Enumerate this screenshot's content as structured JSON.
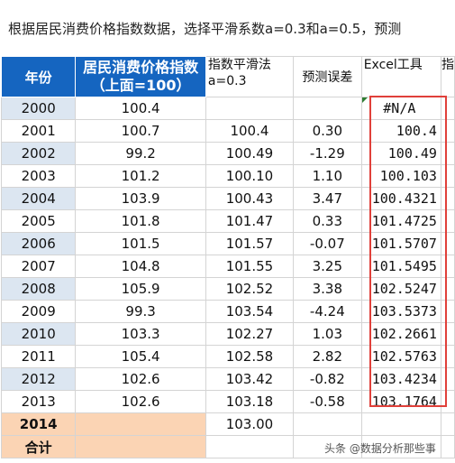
{
  "title": "根据居民消费价格指数数据，选择平滑系数a=0.3和a=0.5，预测",
  "headers": {
    "year": "年份",
    "cpi": "居民消费价格指数（上面=100）",
    "smooth": "指数平滑法a=0.3",
    "error": "预测误差",
    "excel": "Excel工具",
    "cut": "指"
  },
  "rows": [
    {
      "year": "2000",
      "cpi": "100.4",
      "smooth": "",
      "error": "",
      "excel": "#N/A"
    },
    {
      "year": "2001",
      "cpi": "100.7",
      "smooth": "100.4",
      "error": "0.30",
      "excel": "100.4"
    },
    {
      "year": "2002",
      "cpi": "99.2",
      "smooth": "100.49",
      "error": "-1.29",
      "excel": "100.49"
    },
    {
      "year": "2003",
      "cpi": "101.2",
      "smooth": "100.10",
      "error": "1.10",
      "excel": "100.103"
    },
    {
      "year": "2004",
      "cpi": "103.9",
      "smooth": "100.43",
      "error": "3.47",
      "excel": "100.4321"
    },
    {
      "year": "2005",
      "cpi": "101.8",
      "smooth": "101.47",
      "error": "0.33",
      "excel": "101.4725"
    },
    {
      "year": "2006",
      "cpi": "101.5",
      "smooth": "101.57",
      "error": "-0.07",
      "excel": "101.5707"
    },
    {
      "year": "2007",
      "cpi": "104.8",
      "smooth": "101.55",
      "error": "3.25",
      "excel": "101.5495"
    },
    {
      "year": "2008",
      "cpi": "105.9",
      "smooth": "102.52",
      "error": "3.38",
      "excel": "102.5247"
    },
    {
      "year": "2009",
      "cpi": "99.3",
      "smooth": "103.54",
      "error": "-4.24",
      "excel": "103.5373"
    },
    {
      "year": "2010",
      "cpi": "103.3",
      "smooth": "102.27",
      "error": "1.03",
      "excel": "102.2661"
    },
    {
      "year": "2011",
      "cpi": "105.4",
      "smooth": "102.58",
      "error": "2.82",
      "excel": "102.5763"
    },
    {
      "year": "2012",
      "cpi": "102.6",
      "smooth": "103.42",
      "error": "-0.82",
      "excel": "103.4234"
    },
    {
      "year": "2013",
      "cpi": "102.6",
      "smooth": "103.18",
      "error": "-0.58",
      "excel": "103.1764"
    }
  ],
  "forecast": {
    "year": "2014",
    "smooth": "103.00"
  },
  "total": {
    "label": "合计"
  },
  "watermark": "头条 @数据分析那些事"
}
